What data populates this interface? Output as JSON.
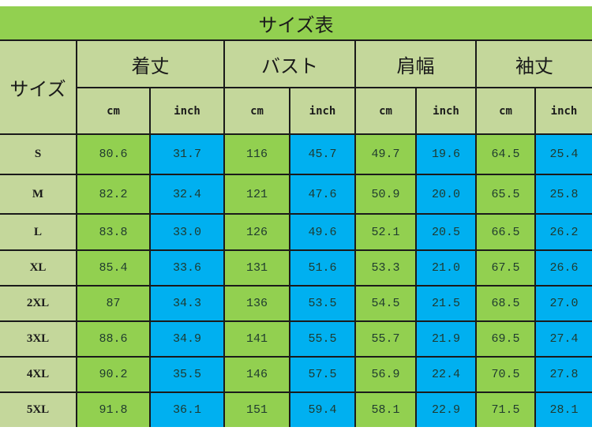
{
  "title": "サイズ表",
  "colors": {
    "title_bar": "#92d050",
    "header_bg": "#c4d79b",
    "cm_bg": "#92d050",
    "inch_bg": "#00b0f0",
    "border": "#1a1a1a"
  },
  "header": {
    "size_label": "サイズ",
    "groups": [
      {
        "label": "着丈",
        "units": [
          "cm",
          "inch"
        ]
      },
      {
        "label": "バスト",
        "units": [
          "cm",
          "inch"
        ]
      },
      {
        "label": "肩幅",
        "units": [
          "cm",
          "inch"
        ]
      },
      {
        "label": "袖丈",
        "units": [
          "cm",
          "inch"
        ]
      }
    ]
  },
  "rows": [
    {
      "size": "S",
      "values": [
        "80.6",
        "31.7",
        "116",
        "45.7",
        "49.7",
        "19.6",
        "64.5",
        "25.4"
      ]
    },
    {
      "size": "M",
      "values": [
        "82.2",
        "32.4",
        "121",
        "47.6",
        "50.9",
        "20.0",
        "65.5",
        "25.8"
      ]
    },
    {
      "size": "L",
      "values": [
        "83.8",
        "33.0",
        "126",
        "49.6",
        "52.1",
        "20.5",
        "66.5",
        "26.2"
      ]
    },
    {
      "size": "XL",
      "values": [
        "85.4",
        "33.6",
        "131",
        "51.6",
        "53.3",
        "21.0",
        "67.5",
        "26.6"
      ]
    },
    {
      "size": "2XL",
      "values": [
        "87",
        "34.3",
        "136",
        "53.5",
        "54.5",
        "21.5",
        "68.5",
        "27.0"
      ]
    },
    {
      "size": "3XL",
      "values": [
        "88.6",
        "34.9",
        "141",
        "55.5",
        "55.7",
        "21.9",
        "69.5",
        "27.4"
      ]
    },
    {
      "size": "4XL",
      "values": [
        "90.2",
        "35.5",
        "146",
        "57.5",
        "56.9",
        "22.4",
        "70.5",
        "27.8"
      ]
    },
    {
      "size": "5XL",
      "values": [
        "91.8",
        "36.1",
        "151",
        "59.4",
        "58.1",
        "22.9",
        "71.5",
        "28.1"
      ]
    }
  ]
}
